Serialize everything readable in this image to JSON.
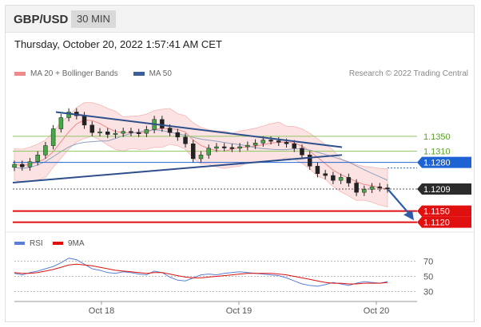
{
  "header": {
    "symbol": "GBP/USD",
    "timeframe": "30 MIN"
  },
  "datetime": "Thursday, October 20, 2022 1:57:41 AM CET",
  "legend": {
    "items": [
      {
        "label": "MA 20 + Bollinger Bands",
        "color": "#f08a8a"
      },
      {
        "label": "MA 50",
        "color": "#3a5f9a"
      }
    ]
  },
  "credit": "Research © 2022 Trading Central",
  "rsi_legend": {
    "items": [
      {
        "label": "RSI",
        "color": "#5b7fd6"
      },
      {
        "label": "9MA",
        "color": "#dd1111"
      }
    ]
  },
  "chart_data": [
    {
      "type": "candlestick",
      "ylim": [
        1.11,
        1.148
      ],
      "x_ticks": [
        "Oct 18",
        "Oct 19",
        "Oct 20"
      ],
      "levels": [
        {
          "label": "1.1350",
          "value": 1.135,
          "kind": "resistance",
          "color": "#8fc760"
        },
        {
          "label": "1.1310",
          "value": 1.131,
          "kind": "resistance",
          "color": "#8fc760"
        },
        {
          "label": "1.1280",
          "value": 1.128,
          "kind": "pivot",
          "color": "#2166d0"
        },
        {
          "label": "1.1209",
          "value": 1.1209,
          "kind": "last",
          "color": "#333333"
        },
        {
          "label": "1.1150",
          "value": 1.115,
          "kind": "support",
          "color": "#e01010"
        },
        {
          "label": "1.1120",
          "value": 1.112,
          "kind": "support",
          "color": "#e01010"
        }
      ],
      "close_series": [
        1.1275,
        1.1268,
        1.1282,
        1.13,
        1.1325,
        1.137,
        1.14,
        1.1415,
        1.1405,
        1.138,
        1.136,
        1.1362,
        1.1355,
        1.1358,
        1.1363,
        1.136,
        1.1358,
        1.1368,
        1.1395,
        1.1372,
        1.136,
        1.1348,
        1.133,
        1.129,
        1.13,
        1.1318,
        1.1322,
        1.132,
        1.1318,
        1.1322,
        1.1326,
        1.1332,
        1.134,
        1.1338,
        1.1334,
        1.133,
        1.1318,
        1.13,
        1.127,
        1.125,
        1.1245,
        1.1232,
        1.124,
        1.1225,
        1.12,
        1.1208,
        1.1215,
        1.1212,
        1.1209
      ]
    },
    {
      "type": "line",
      "title": "RSI",
      "ylim": [
        20,
        80
      ],
      "y_ticks": [
        70,
        50,
        30
      ],
      "series": [
        {
          "name": "RSI",
          "values": [
            54,
            52,
            55,
            57,
            60,
            63,
            68,
            74,
            72,
            66,
            60,
            58,
            55,
            54,
            56,
            55,
            53,
            52,
            57,
            55,
            49,
            45,
            44,
            48,
            52,
            53,
            52,
            54,
            55,
            56,
            55,
            54,
            53,
            52,
            51,
            48,
            44,
            40,
            38,
            37,
            39,
            42,
            40,
            38,
            41,
            43,
            42,
            41,
            43
          ]
        },
        {
          "name": "9MA",
          "values": [
            55,
            54,
            54,
            55,
            57,
            59,
            62,
            65,
            66,
            65,
            64,
            62,
            60,
            58,
            57,
            56,
            55,
            54,
            55,
            55,
            53,
            51,
            49,
            48,
            48,
            49,
            50,
            51,
            52,
            53,
            54,
            54,
            54,
            54,
            53,
            52,
            50,
            48,
            46,
            44,
            42,
            41,
            41,
            40,
            40,
            41,
            41,
            41,
            42
          ]
        }
      ]
    }
  ]
}
